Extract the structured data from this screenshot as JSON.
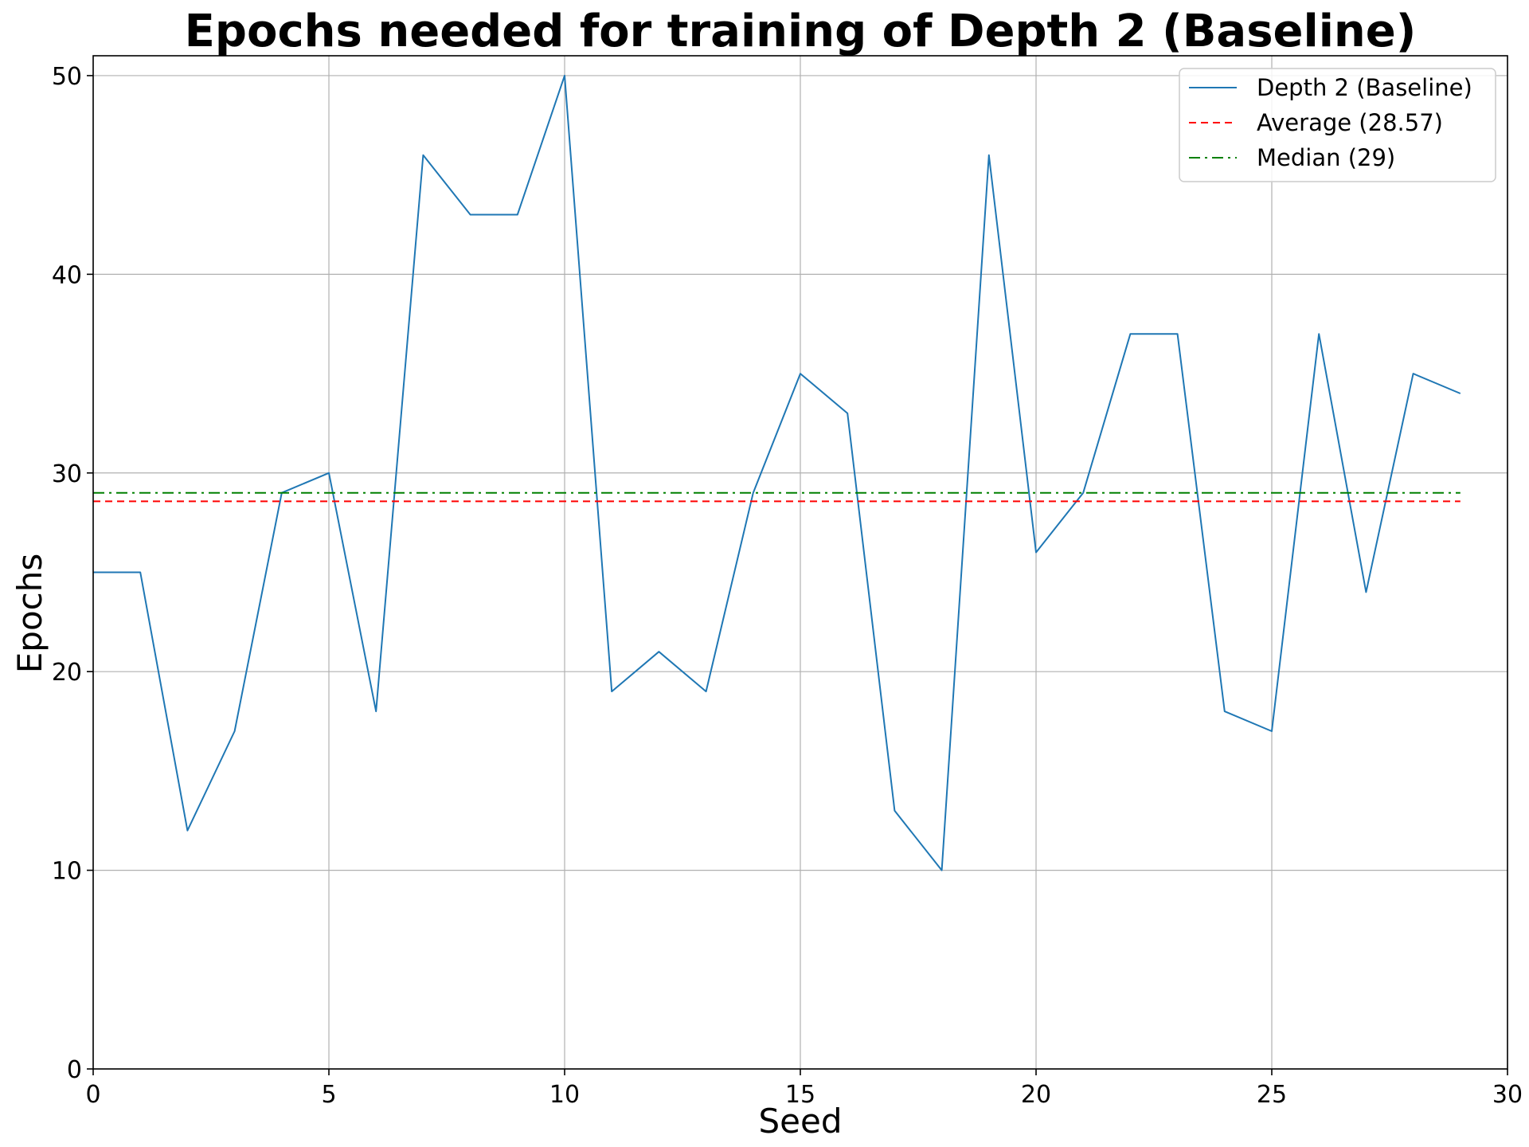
{
  "chart_data": {
    "type": "line",
    "title": "Epochs needed for training of Depth 2 (Baseline)",
    "xlabel": "Seed",
    "ylabel": "Epochs",
    "xlim": [
      0,
      30
    ],
    "ylim": [
      0,
      51
    ],
    "xticks": [
      0,
      5,
      10,
      15,
      20,
      25,
      30
    ],
    "yticks": [
      0,
      10,
      20,
      30,
      40,
      50
    ],
    "grid": true,
    "legend_position": "top-right",
    "series": [
      {
        "name": "Depth 2 (Baseline)",
        "style": "solid",
        "color": "#1f77b4",
        "x": [
          0,
          1,
          2,
          3,
          4,
          5,
          6,
          7,
          8,
          9,
          10,
          11,
          12,
          13,
          14,
          15,
          16,
          17,
          18,
          19,
          20,
          21,
          22,
          23,
          24,
          25,
          26,
          27,
          28,
          29
        ],
        "values": [
          25,
          25,
          12,
          17,
          29,
          30,
          18,
          46,
          43,
          43,
          50,
          19,
          21,
          19,
          29,
          35,
          33,
          13,
          10,
          46,
          26,
          29,
          37,
          37,
          18,
          17,
          37,
          24,
          35,
          34
        ]
      },
      {
        "name": "Average (28.57)",
        "style": "dashed",
        "color": "#ff0000",
        "x": [
          0,
          29
        ],
        "values": [
          28.57,
          28.57
        ]
      },
      {
        "name": "Median (29)",
        "style": "dashdot",
        "color": "#008000",
        "x": [
          0,
          29
        ],
        "values": [
          29,
          29
        ]
      }
    ]
  }
}
